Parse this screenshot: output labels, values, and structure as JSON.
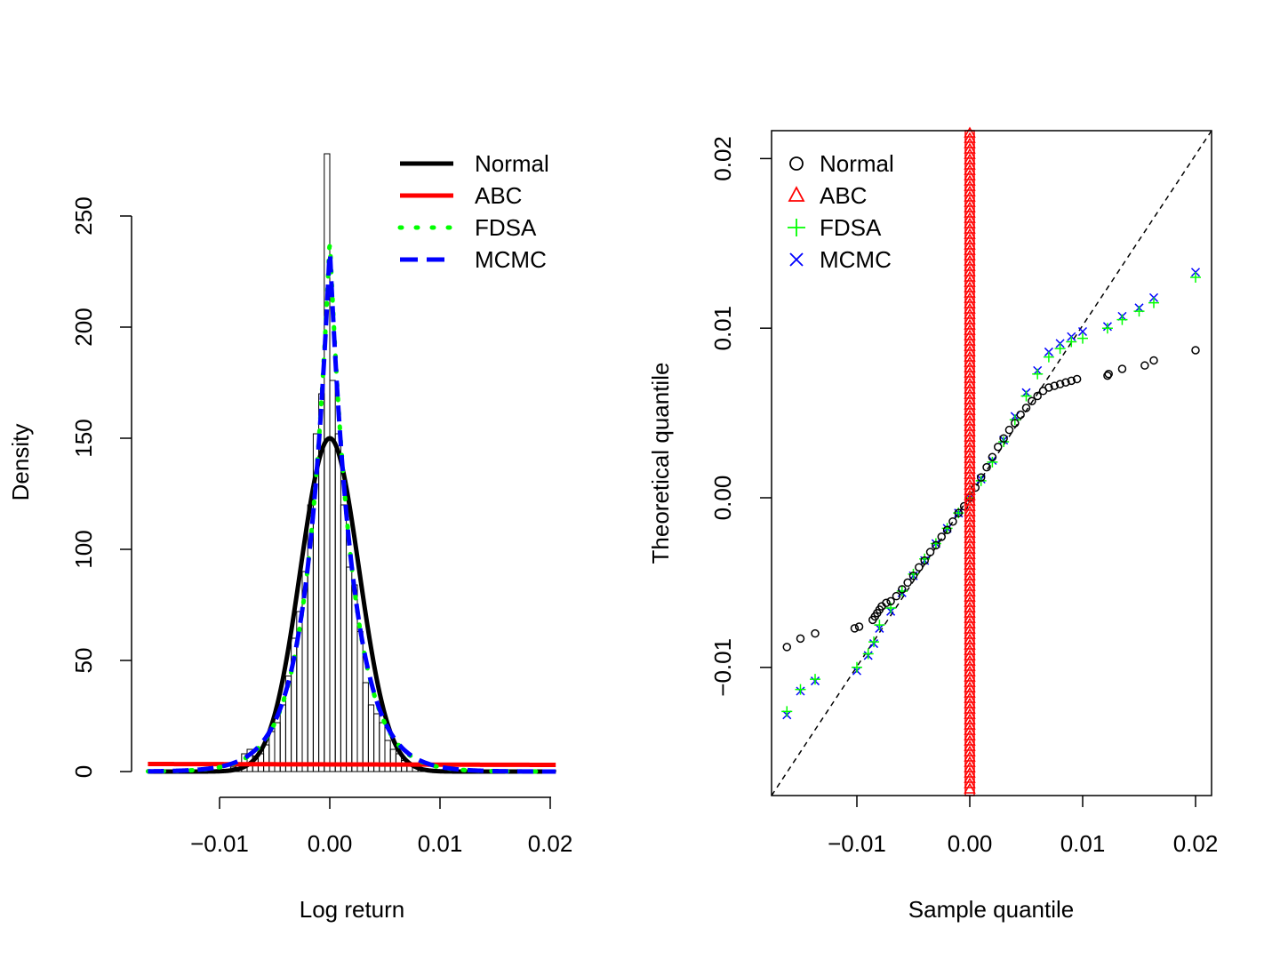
{
  "chart_data": [
    {
      "type": "histogram",
      "xlabel": "Log return",
      "ylabel": "Density",
      "xlim": [
        -0.0165,
        0.0205
      ],
      "ylim": [
        0,
        280
      ],
      "x_ticks": [
        -0.01,
        0.0,
        0.01,
        0.02
      ],
      "x_tick_labels": [
        "−0.01",
        "0.00",
        "0.01",
        "0.02"
      ],
      "y_ticks": [
        0,
        50,
        100,
        150,
        200,
        250
      ],
      "y_tick_labels": [
        "0",
        "50",
        "100",
        "150",
        "200",
        "250"
      ],
      "bin_width": 0.0005,
      "bins": [
        {
          "x0": -0.0165,
          "density": 0.5
        },
        {
          "x0": -0.016,
          "density": 0.5
        },
        {
          "x0": -0.0155,
          "density": 0
        },
        {
          "x0": -0.015,
          "density": 0.5
        },
        {
          "x0": -0.0145,
          "density": 0
        },
        {
          "x0": -0.014,
          "density": 0.5
        },
        {
          "x0": -0.0135,
          "density": 0
        },
        {
          "x0": -0.013,
          "density": 0
        },
        {
          "x0": -0.0125,
          "density": 0
        },
        {
          "x0": -0.012,
          "density": 0
        },
        {
          "x0": -0.0115,
          "density": 0
        },
        {
          "x0": -0.011,
          "density": 0
        },
        {
          "x0": -0.0105,
          "density": 0
        },
        {
          "x0": -0.01,
          "density": 0.5
        },
        {
          "x0": -0.0095,
          "density": 1
        },
        {
          "x0": -0.009,
          "density": 2
        },
        {
          "x0": -0.0085,
          "density": 3
        },
        {
          "x0": -0.008,
          "density": 8
        },
        {
          "x0": -0.0075,
          "density": 10
        },
        {
          "x0": -0.007,
          "density": 7
        },
        {
          "x0": -0.0065,
          "density": 8
        },
        {
          "x0": -0.006,
          "density": 12
        },
        {
          "x0": -0.0055,
          "density": 18
        },
        {
          "x0": -0.005,
          "density": 22
        },
        {
          "x0": -0.0045,
          "density": 30
        },
        {
          "x0": -0.004,
          "density": 43
        },
        {
          "x0": -0.0035,
          "density": 60
        },
        {
          "x0": -0.003,
          "density": 72
        },
        {
          "x0": -0.0025,
          "density": 90
        },
        {
          "x0": -0.002,
          "density": 120
        },
        {
          "x0": -0.0015,
          "density": 152
        },
        {
          "x0": -0.001,
          "density": 170
        },
        {
          "x0": -0.0005,
          "density": 278
        },
        {
          "x0": 0.0,
          "density": 176
        },
        {
          "x0": 0.0005,
          "density": 152
        },
        {
          "x0": 0.001,
          "density": 120
        },
        {
          "x0": 0.0015,
          "density": 92
        },
        {
          "x0": 0.002,
          "density": 84
        },
        {
          "x0": 0.0025,
          "density": 63
        },
        {
          "x0": 0.003,
          "density": 40
        },
        {
          "x0": 0.0035,
          "density": 30
        },
        {
          "x0": 0.004,
          "density": 26
        },
        {
          "x0": 0.0045,
          "density": 22
        },
        {
          "x0": 0.005,
          "density": 14
        },
        {
          "x0": 0.0055,
          "density": 10
        },
        {
          "x0": 0.006,
          "density": 8
        },
        {
          "x0": 0.0065,
          "density": 5
        },
        {
          "x0": 0.007,
          "density": 3
        },
        {
          "x0": 0.0075,
          "density": 2
        },
        {
          "x0": 0.008,
          "density": 1
        },
        {
          "x0": 0.0085,
          "density": 1
        },
        {
          "x0": 0.009,
          "density": 0.5
        },
        {
          "x0": 0.0095,
          "density": 0.5
        },
        {
          "x0": 0.01,
          "density": 0.5
        },
        {
          "x0": 0.0105,
          "density": 0
        },
        {
          "x0": 0.011,
          "density": 0
        },
        {
          "x0": 0.0115,
          "density": 0.5
        },
        {
          "x0": 0.012,
          "density": 0.5
        },
        {
          "x0": 0.0125,
          "density": 0
        },
        {
          "x0": 0.013,
          "density": 0.5
        },
        {
          "x0": 0.0135,
          "density": 0
        },
        {
          "x0": 0.014,
          "density": 0
        },
        {
          "x0": 0.0145,
          "density": 0
        },
        {
          "x0": 0.015,
          "density": 0
        },
        {
          "x0": 0.0155,
          "density": 0.5
        },
        {
          "x0": 0.016,
          "density": 0.5
        },
        {
          "x0": 0.0165,
          "density": 0
        },
        {
          "x0": 0.017,
          "density": 0
        },
        {
          "x0": 0.0175,
          "density": 0
        },
        {
          "x0": 0.018,
          "density": 0
        },
        {
          "x0": 0.0185,
          "density": 0
        },
        {
          "x0": 0.019,
          "density": 0
        },
        {
          "x0": 0.0195,
          "density": 0
        },
        {
          "x0": 0.02,
          "density": 0.5
        }
      ],
      "series": [
        {
          "name": "Normal",
          "color": "#000000",
          "style": "solid",
          "kind": "normal",
          "mean": 0.0,
          "sd": 0.00266
        },
        {
          "name": "ABC",
          "color": "#ff0000",
          "style": "solid",
          "kind": "flat",
          "density_start": 3.4,
          "density_end": 3.0
        },
        {
          "name": "FDSA",
          "color": "#00ff00",
          "style": "dotted",
          "kind": "laplace",
          "peak": 240,
          "scale": 0.00208
        },
        {
          "name": "MCMC",
          "color": "#0000ff",
          "style": "dashed",
          "kind": "laplace",
          "peak": 236,
          "scale": 0.00212
        }
      ],
      "legend_position": "top-right"
    },
    {
      "type": "scatter",
      "xlabel": "Sample quantile",
      "ylabel": "Theoretical quantile",
      "xlim": [
        -0.0165,
        0.0215
      ],
      "ylim": [
        -0.0175,
        0.0215
      ],
      "x_ticks": [
        -0.01,
        0.0,
        0.01,
        0.02
      ],
      "x_tick_labels": [
        "−0.01",
        "0.00",
        "0.01",
        "0.02"
      ],
      "y_ticks": [
        -0.01,
        0.0,
        0.01,
        0.02
      ],
      "y_tick_labels": [
        "−0.01",
        "0.00",
        "0.01",
        "0.02"
      ],
      "reference_line": "y = x (dashed)",
      "series": [
        {
          "name": "Normal",
          "color": "#000000",
          "marker": "circle",
          "points": [
            [
              -0.0162,
              -0.0088
            ],
            [
              -0.015,
              -0.0083
            ],
            [
              -0.0137,
              -0.008
            ],
            [
              -0.0102,
              -0.0077
            ],
            [
              -0.0098,
              -0.0076
            ],
            [
              -0.0086,
              -0.0072
            ],
            [
              -0.0084,
              -0.007
            ],
            [
              -0.0082,
              -0.0068
            ],
            [
              -0.008,
              -0.0066
            ],
            [
              -0.0078,
              -0.0064
            ],
            [
              -0.0074,
              -0.0062
            ],
            [
              -0.007,
              -0.0061
            ],
            [
              -0.0065,
              -0.0058
            ],
            [
              -0.006,
              -0.0054
            ],
            [
              -0.0055,
              -0.005
            ],
            [
              -0.005,
              -0.0046
            ],
            [
              -0.0045,
              -0.0041
            ],
            [
              -0.004,
              -0.0037
            ],
            [
              -0.0035,
              -0.0032
            ],
            [
              -0.003,
              -0.0028
            ],
            [
              -0.0025,
              -0.0023
            ],
            [
              -0.002,
              -0.0019
            ],
            [
              -0.0015,
              -0.0014
            ],
            [
              -0.001,
              -0.0009
            ],
            [
              -0.0005,
              -0.0005
            ],
            [
              0.0,
              0.0
            ],
            [
              0.0005,
              0.0006
            ],
            [
              0.001,
              0.0012
            ],
            [
              0.0015,
              0.0018
            ],
            [
              0.002,
              0.0024
            ],
            [
              0.0025,
              0.003
            ],
            [
              0.003,
              0.0035
            ],
            [
              0.0035,
              0.004
            ],
            [
              0.004,
              0.0044
            ],
            [
              0.0045,
              0.0049
            ],
            [
              0.005,
              0.0053
            ],
            [
              0.0055,
              0.0057
            ],
            [
              0.006,
              0.006
            ],
            [
              0.0065,
              0.0063
            ],
            [
              0.007,
              0.0065
            ],
            [
              0.0075,
              0.0066
            ],
            [
              0.008,
              0.0067
            ],
            [
              0.0085,
              0.0068
            ],
            [
              0.009,
              0.0069
            ],
            [
              0.0095,
              0.007
            ],
            [
              0.0122,
              0.0072
            ],
            [
              0.0123,
              0.0073
            ],
            [
              0.0135,
              0.0076
            ],
            [
              0.0155,
              0.0078
            ],
            [
              0.0163,
              0.0081
            ],
            [
              0.02,
              0.0087
            ]
          ]
        },
        {
          "name": "ABC",
          "color": "#ff0000",
          "marker": "triangle",
          "points": [
            [
              0.0,
              -0.0175
            ],
            [
              0.0,
              -0.015
            ],
            [
              0.0,
              -0.012
            ],
            [
              0.0,
              -0.009
            ],
            [
              0.0,
              -0.006
            ],
            [
              0.0,
              -0.003
            ],
            [
              0.0,
              0.0
            ],
            [
              0.0,
              0.003
            ],
            [
              0.0,
              0.006
            ],
            [
              0.0,
              0.009
            ],
            [
              0.0,
              0.012
            ],
            [
              0.0,
              0.015
            ],
            [
              0.0,
              0.018
            ],
            [
              0.0,
              0.0215
            ]
          ]
        },
        {
          "name": "FDSA",
          "color": "#00ff00",
          "marker": "plus",
          "points": [
            [
              -0.0162,
              -0.0126
            ],
            [
              -0.015,
              -0.0113
            ],
            [
              -0.0137,
              -0.0107
            ],
            [
              -0.01,
              -0.01
            ],
            [
              -0.009,
              -0.0092
            ],
            [
              -0.0085,
              -0.0085
            ],
            [
              -0.008,
              -0.0075
            ],
            [
              -0.007,
              -0.0065
            ],
            [
              -0.006,
              -0.0055
            ],
            [
              -0.005,
              -0.0045
            ],
            [
              -0.004,
              -0.0036
            ],
            [
              -0.003,
              -0.0027
            ],
            [
              -0.002,
              -0.0018
            ],
            [
              -0.001,
              -0.0009
            ],
            [
              0.0,
              0.0
            ],
            [
              0.001,
              0.001
            ],
            [
              0.002,
              0.0021
            ],
            [
              0.003,
              0.0033
            ],
            [
              0.004,
              0.0046
            ],
            [
              0.005,
              0.006
            ],
            [
              0.006,
              0.0073
            ],
            [
              0.007,
              0.0083
            ],
            [
              0.008,
              0.0088
            ],
            [
              0.009,
              0.0092
            ],
            [
              0.01,
              0.0094
            ],
            [
              0.0122,
              0.01
            ],
            [
              0.0135,
              0.0105
            ],
            [
              0.015,
              0.011
            ],
            [
              0.0163,
              0.0115
            ],
            [
              0.02,
              0.013
            ]
          ]
        },
        {
          "name": "MCMC",
          "color": "#0000ff",
          "marker": "cross",
          "points": [
            [
              -0.0162,
              -0.0128
            ],
            [
              -0.015,
              -0.0114
            ],
            [
              -0.0137,
              -0.0108
            ],
            [
              -0.01,
              -0.0102
            ],
            [
              -0.009,
              -0.0093
            ],
            [
              -0.0085,
              -0.0086
            ],
            [
              -0.008,
              -0.0077
            ],
            [
              -0.007,
              -0.0067
            ],
            [
              -0.006,
              -0.0056
            ],
            [
              -0.005,
              -0.0046
            ],
            [
              -0.004,
              -0.0037
            ],
            [
              -0.003,
              -0.0027
            ],
            [
              -0.002,
              -0.0018
            ],
            [
              -0.001,
              -0.0009
            ],
            [
              0.0,
              0.0
            ],
            [
              0.001,
              0.0011
            ],
            [
              0.002,
              0.0022
            ],
            [
              0.003,
              0.0034
            ],
            [
              0.004,
              0.0048
            ],
            [
              0.005,
              0.0062
            ],
            [
              0.006,
              0.0075
            ],
            [
              0.007,
              0.0086
            ],
            [
              0.008,
              0.0091
            ],
            [
              0.009,
              0.0095
            ],
            [
              0.01,
              0.0098
            ],
            [
              0.0122,
              0.0101
            ],
            [
              0.0135,
              0.0107
            ],
            [
              0.015,
              0.0112
            ],
            [
              0.0163,
              0.0118
            ],
            [
              0.02,
              0.0133
            ]
          ]
        }
      ],
      "legend_position": "top-left"
    }
  ]
}
